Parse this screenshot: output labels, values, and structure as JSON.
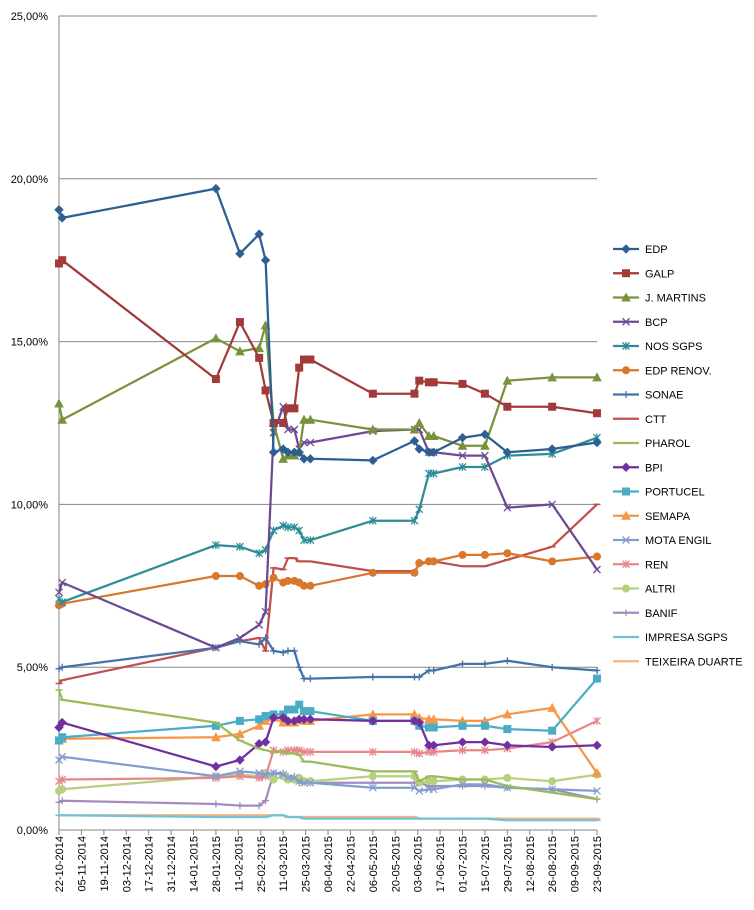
{
  "chart_data": {
    "type": "line",
    "title": "",
    "xlabel": "",
    "ylabel": "",
    "ylim": [
      0,
      25
    ],
    "yticks": [
      0,
      5,
      10,
      15,
      20,
      25
    ],
    "ytick_labels": [
      "0,00%",
      "5,00%",
      "10,00%",
      "15,00%",
      "20,00%",
      "25,00%"
    ],
    "xlim": [
      "2014-10-22",
      "2015-09-23"
    ],
    "xtick_labels": [
      "22-10-2014",
      "05-11-2014",
      "19-11-2014",
      "03-12-2014",
      "17-12-2014",
      "31-12-2014",
      "14-01-2015",
      "28-01-2015",
      "11-02-2015",
      "25-02-2015",
      "11-03-2015",
      "25-03-2015",
      "08-04-2015",
      "22-04-2015",
      "06-05-2015",
      "20-05-2015",
      "03-06-2015",
      "17-06-2015",
      "01-07-2015",
      "15-07-2015",
      "29-07-2015",
      "12-08-2015",
      "26-08-2015",
      "09-09-2015",
      "23-09-2015"
    ],
    "grid": "horizontal",
    "legend_position": "right",
    "x": [
      "2014-10-22",
      "2014-10-24",
      "2015-01-28",
      "2015-02-12",
      "2015-02-24",
      "2015-02-28",
      "2015-03-05",
      "2015-03-11",
      "2015-03-14",
      "2015-03-18",
      "2015-03-21",
      "2015-03-24",
      "2015-03-28",
      "2015-05-06",
      "2015-06-01",
      "2015-06-04",
      "2015-06-10",
      "2015-06-13",
      "2015-07-01",
      "2015-07-15",
      "2015-07-29",
      "2015-08-26",
      "2015-09-23"
    ],
    "series": [
      {
        "name": "EDP",
        "color": "#2E5F93",
        "marker": "diamond",
        "values": [
          19.05,
          18.8,
          19.7,
          17.7,
          18.3,
          17.5,
          11.6,
          11.7,
          11.6,
          11.6,
          11.6,
          11.4,
          11.4,
          11.35,
          11.95,
          11.7,
          11.6,
          11.6,
          12.05,
          12.15,
          11.6,
          11.7,
          11.9
        ]
      },
      {
        "name": "GALP",
        "color": "#A33A3A",
        "marker": "square",
        "values": [
          17.4,
          17.5,
          13.85,
          15.6,
          14.5,
          13.5,
          12.5,
          12.5,
          12.95,
          12.95,
          14.2,
          14.45,
          14.45,
          13.4,
          13.4,
          13.8,
          13.75,
          13.75,
          13.7,
          13.4,
          13.0,
          13.0,
          12.8
        ]
      },
      {
        "name": "J. MARTINS",
        "color": "#77933C",
        "marker": "triangle",
        "values": [
          13.1,
          12.6,
          15.1,
          14.7,
          14.8,
          15.5,
          12.5,
          11.4,
          11.5,
          11.5,
          11.6,
          12.6,
          12.6,
          12.3,
          12.3,
          12.5,
          12.1,
          12.1,
          11.8,
          11.8,
          13.8,
          13.9,
          13.9
        ]
      },
      {
        "name": "BCP",
        "color": "#6C4A93",
        "marker": "x",
        "values": [
          7.3,
          7.6,
          5.6,
          5.9,
          6.3,
          6.7,
          12.2,
          13.0,
          12.3,
          12.3,
          11.7,
          11.9,
          11.9,
          12.25,
          12.3,
          12.3,
          11.6,
          11.6,
          11.5,
          11.5,
          9.9,
          10.0,
          8.0
        ]
      },
      {
        "name": "NOS SGPS",
        "color": "#2E8C96",
        "marker": "star",
        "values": [
          7.1,
          7.0,
          8.75,
          8.7,
          8.5,
          8.6,
          9.2,
          9.35,
          9.3,
          9.3,
          9.2,
          8.9,
          8.9,
          9.5,
          9.5,
          9.85,
          10.95,
          10.95,
          11.15,
          11.15,
          11.5,
          11.55,
          12.05
        ]
      },
      {
        "name": "EDP RENOV.",
        "color": "#D9782D",
        "marker": "circle",
        "values": [
          6.9,
          6.95,
          7.8,
          7.8,
          7.5,
          7.55,
          7.75,
          7.6,
          7.65,
          7.65,
          7.6,
          7.5,
          7.5,
          7.9,
          7.9,
          8.2,
          8.25,
          8.25,
          8.45,
          8.45,
          8.5,
          8.25,
          8.4
        ]
      },
      {
        "name": "SONAE",
        "color": "#4572A7",
        "marker": "plus",
        "values": [
          4.95,
          5.0,
          5.6,
          5.8,
          5.7,
          5.9,
          5.5,
          5.45,
          5.5,
          5.5,
          5.0,
          4.65,
          4.65,
          4.7,
          4.7,
          4.7,
          4.9,
          4.9,
          5.1,
          5.1,
          5.2,
          5.0,
          4.9
        ]
      },
      {
        "name": "CTT",
        "color": "#C0504D",
        "marker": "dash",
        "values": [
          4.5,
          4.6,
          5.6,
          5.8,
          5.9,
          5.5,
          8.05,
          8.0,
          8.35,
          8.35,
          8.25,
          8.25,
          8.25,
          7.95,
          7.95,
          8.15,
          8.25,
          8.25,
          8.1,
          8.1,
          8.3,
          8.7,
          10.0
        ]
      },
      {
        "name": "PHAROL",
        "color": "#9BBB59",
        "marker": "dash",
        "values": [
          4.3,
          4.0,
          3.3,
          2.75,
          2.5,
          2.45,
          2.4,
          2.4,
          2.35,
          2.35,
          2.3,
          2.1,
          2.1,
          1.8,
          1.8,
          1.5,
          1.65,
          1.65,
          1.55,
          1.55,
          1.35,
          1.15,
          0.95
        ]
      },
      {
        "name": "BPI",
        "color": "#7030A0",
        "marker": "diamond",
        "values": [
          3.15,
          3.3,
          1.95,
          2.15,
          2.65,
          2.7,
          3.45,
          3.45,
          3.35,
          3.35,
          3.4,
          3.4,
          3.4,
          3.35,
          3.35,
          3.3,
          2.6,
          2.6,
          2.7,
          2.7,
          2.6,
          2.55,
          2.6
        ]
      },
      {
        "name": "PORTUCEL",
        "color": "#4BACC6",
        "marker": "square",
        "values": [
          2.75,
          2.85,
          3.2,
          3.35,
          3.4,
          3.5,
          3.55,
          3.55,
          3.7,
          3.7,
          3.85,
          3.65,
          3.65,
          3.35,
          3.35,
          3.2,
          3.15,
          3.15,
          3.2,
          3.2,
          3.1,
          3.05,
          4.65
        ]
      },
      {
        "name": "SEMAPA",
        "color": "#F79646",
        "marker": "triangle",
        "values": [
          2.75,
          2.8,
          2.85,
          2.95,
          3.2,
          3.35,
          3.45,
          3.3,
          3.3,
          3.3,
          3.4,
          3.35,
          3.35,
          3.55,
          3.55,
          3.45,
          3.4,
          3.4,
          3.35,
          3.35,
          3.55,
          3.75,
          1.75
        ]
      },
      {
        "name": "MOTA ENGIL",
        "color": "#7F9FD0",
        "marker": "x",
        "values": [
          2.15,
          2.25,
          1.65,
          1.8,
          1.75,
          1.7,
          1.75,
          1.7,
          1.6,
          1.6,
          1.5,
          1.45,
          1.45,
          1.3,
          1.3,
          1.2,
          1.25,
          1.25,
          1.4,
          1.4,
          1.3,
          1.25,
          1.2
        ]
      },
      {
        "name": "REN",
        "color": "#E6878C",
        "marker": "star",
        "values": [
          1.5,
          1.55,
          1.6,
          1.65,
          1.6,
          1.65,
          2.45,
          2.4,
          2.45,
          2.45,
          2.45,
          2.4,
          2.4,
          2.4,
          2.4,
          2.35,
          2.4,
          2.4,
          2.45,
          2.45,
          2.5,
          2.7,
          3.35
        ]
      },
      {
        "name": "ALTRI",
        "color": "#B5D17E",
        "marker": "circle",
        "values": [
          1.2,
          1.25,
          1.65,
          1.7,
          1.65,
          1.75,
          1.55,
          1.65,
          1.55,
          1.55,
          1.6,
          1.5,
          1.5,
          1.65,
          1.65,
          1.45,
          1.5,
          1.5,
          1.55,
          1.55,
          1.6,
          1.5,
          1.7
        ]
      },
      {
        "name": "BANIF",
        "color": "#A48BBE",
        "marker": "plus",
        "values": [
          0.85,
          0.9,
          0.8,
          0.75,
          0.75,
          0.9,
          1.75,
          1.75,
          1.65,
          1.65,
          1.45,
          1.45,
          1.45,
          1.45,
          1.45,
          1.45,
          1.35,
          1.35,
          1.35,
          1.35,
          1.3,
          1.25,
          0.95
        ]
      },
      {
        "name": "IMPRESA SGPS",
        "color": "#6FC3D8",
        "marker": "dash",
        "values": [
          0.45,
          0.45,
          0.4,
          0.4,
          0.4,
          0.4,
          0.45,
          0.45,
          0.4,
          0.4,
          0.4,
          0.35,
          0.35,
          0.35,
          0.35,
          0.35,
          0.35,
          0.35,
          0.35,
          0.35,
          0.3,
          0.3,
          0.3
        ]
      },
      {
        "name": "TEIXEIRA DUARTE",
        "color": "#F9B27A",
        "marker": "dash",
        "values": [
          0.45,
          0.45,
          0.45,
          0.45,
          0.45,
          0.45,
          0.45,
          0.45,
          0.4,
          0.4,
          0.4,
          0.4,
          0.4,
          0.4,
          0.4,
          0.35,
          0.35,
          0.35,
          0.35,
          0.35,
          0.35,
          0.35,
          0.35
        ]
      }
    ]
  }
}
